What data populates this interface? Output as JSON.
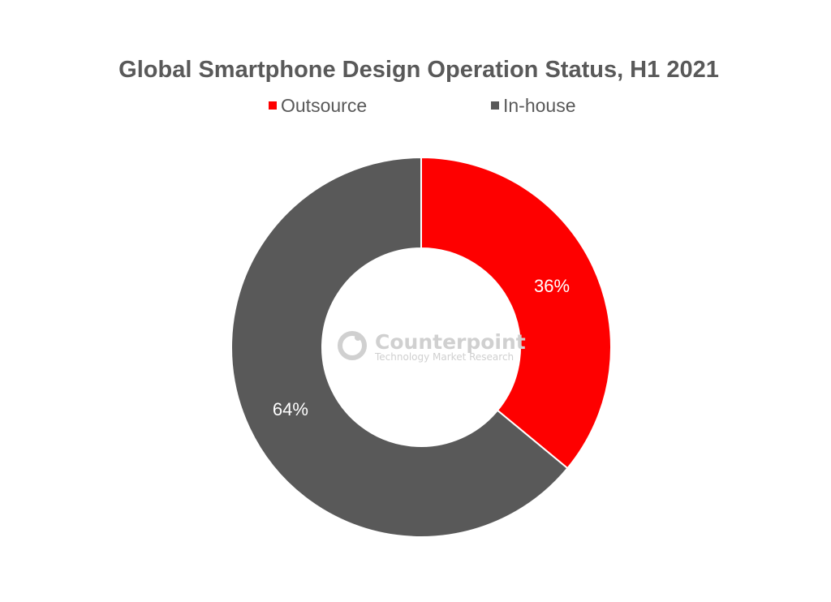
{
  "chart_data": {
    "type": "pie",
    "style": "donut",
    "title": "Global Smartphone Design Operation Status, H1 2021",
    "legend_position": "top",
    "categories": [
      "Outsource",
      "In-house"
    ],
    "values": [
      36,
      64
    ],
    "labels": [
      "36%",
      "64%"
    ],
    "colors": [
      "#fe0000",
      "#595959"
    ]
  },
  "colors": {
    "title": "#595959",
    "legend_text": "#595959",
    "data_label": "#ffffff",
    "slice_border": "#ffffff",
    "watermark": "#d0d0d0"
  },
  "watermark": {
    "name": "Counterpoint",
    "tagline": "Technology Market Research"
  }
}
